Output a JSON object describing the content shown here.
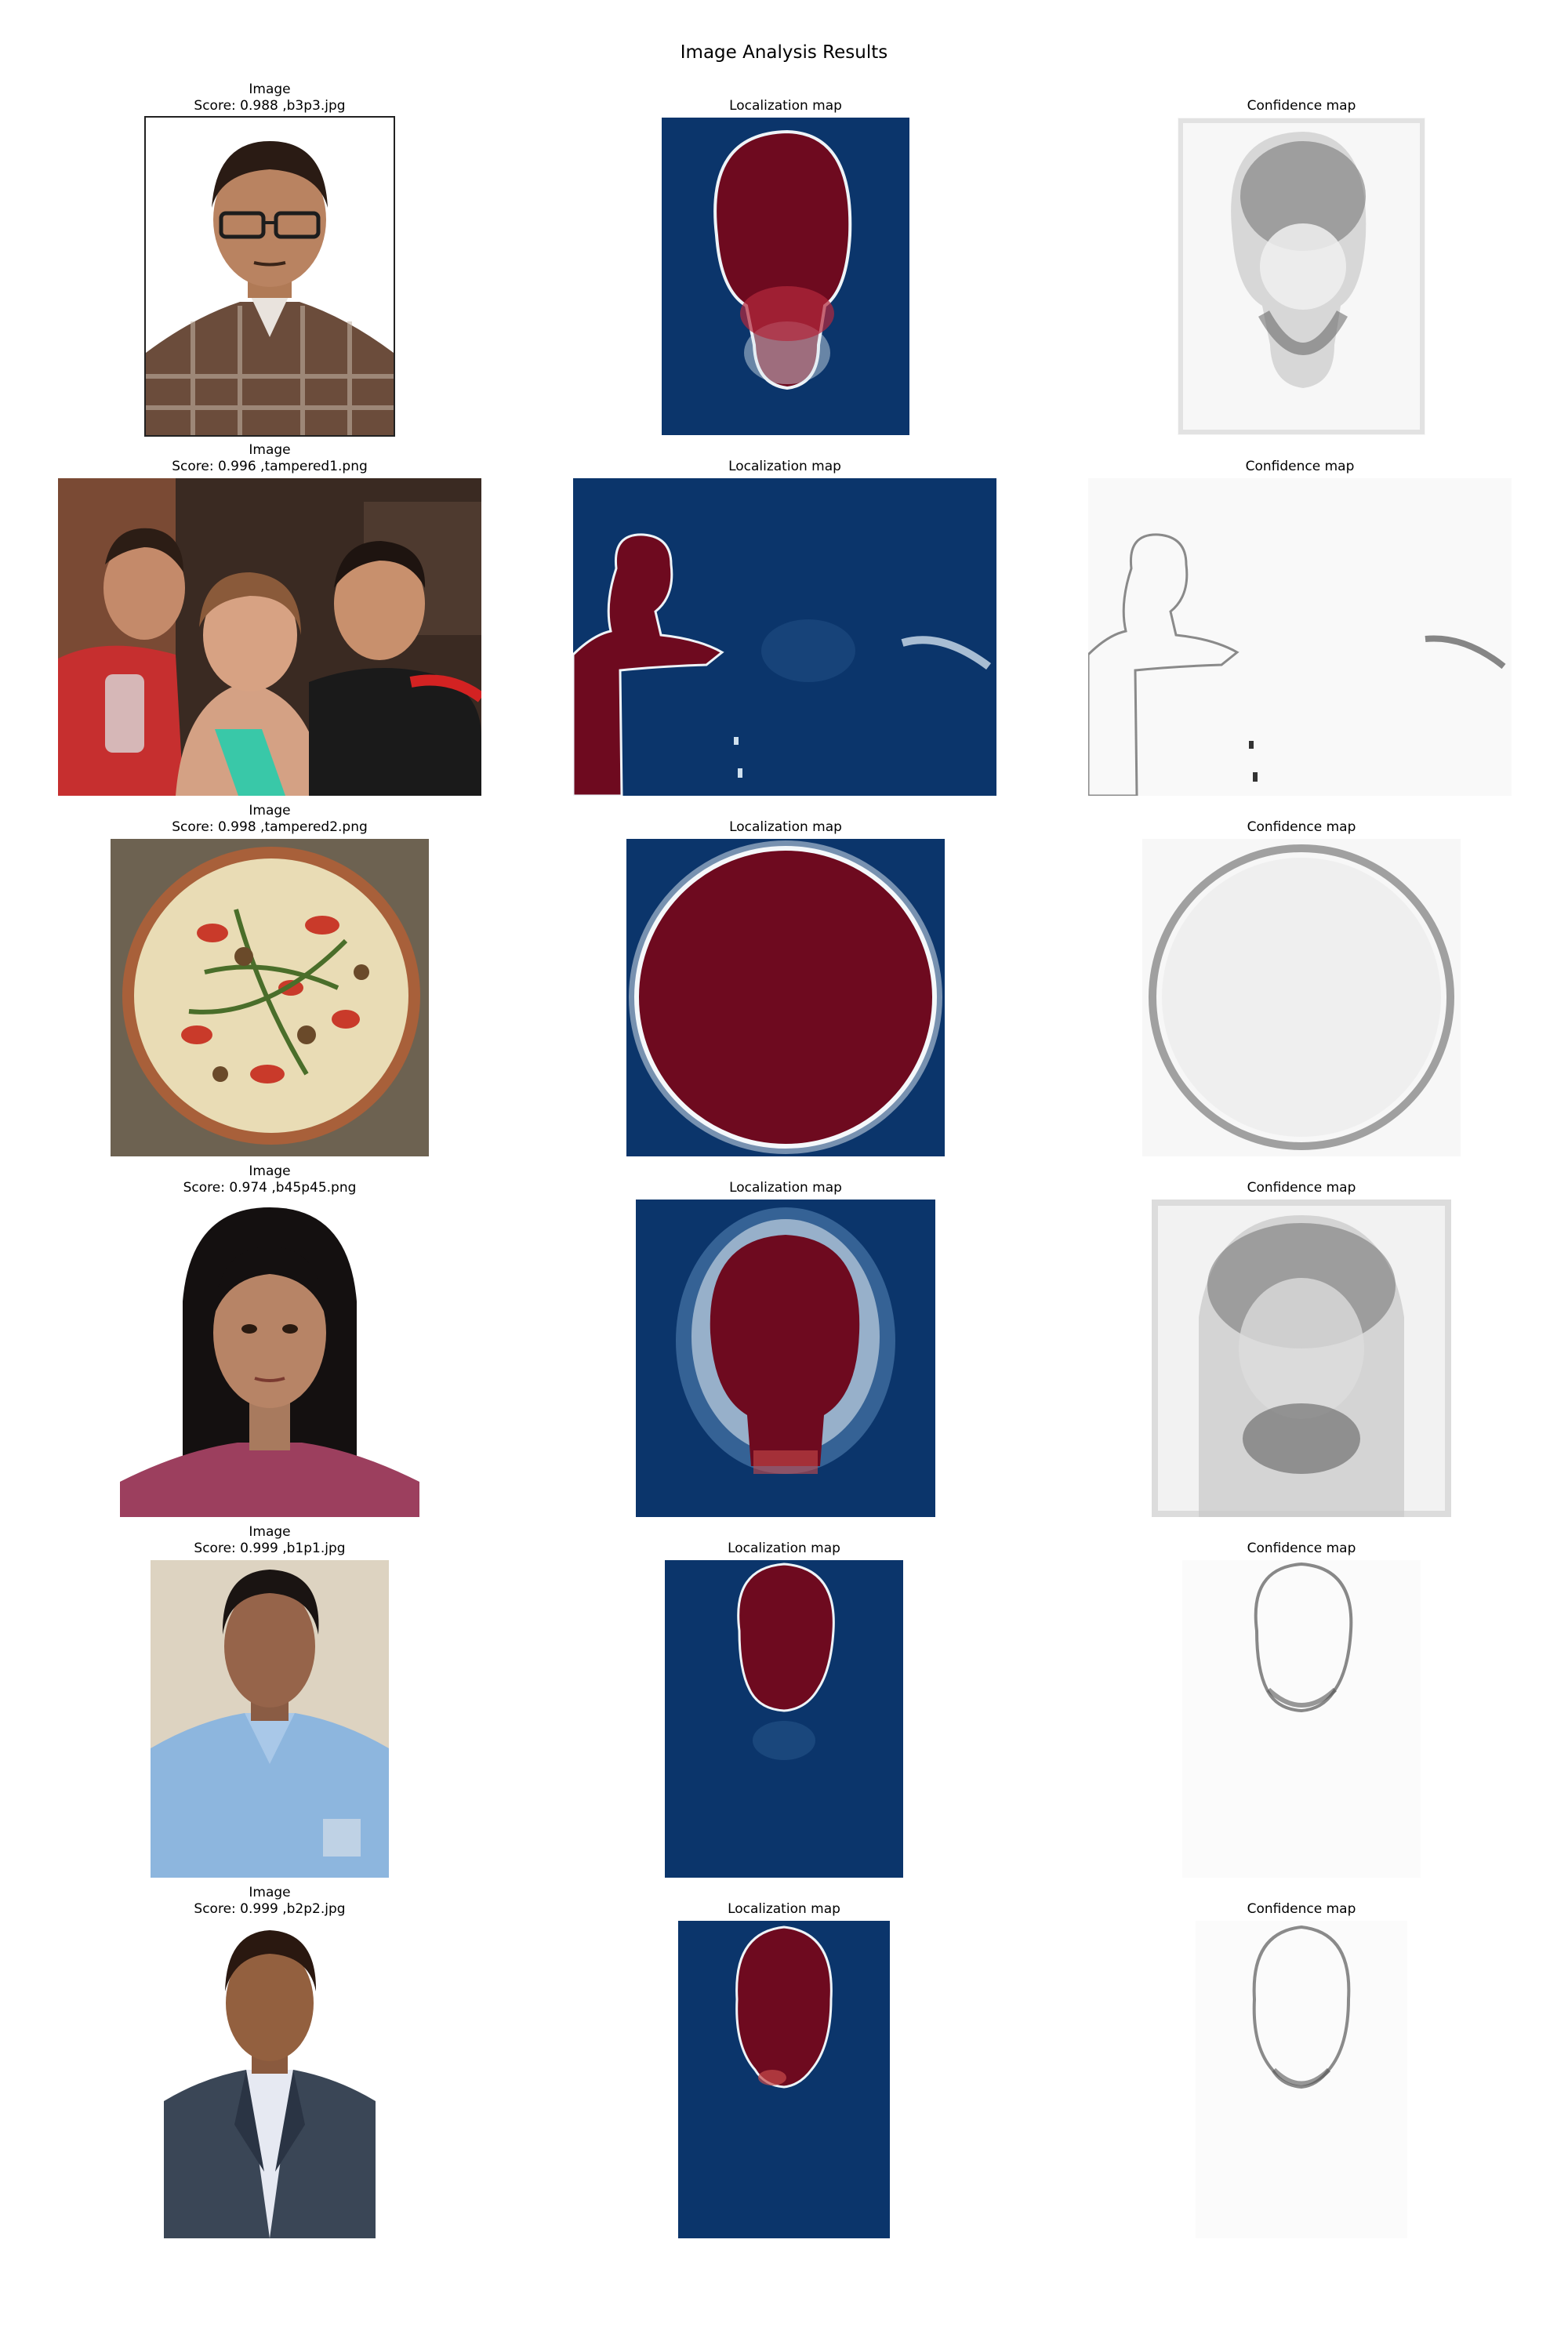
{
  "figure": {
    "title": "Image Analysis Results"
  },
  "colors": {
    "heat_background": "#0b356b",
    "heat_region": "#6e0a1f",
    "heat_edge": "#f4f8fb",
    "confidence_bg": "#f7f7f7",
    "confidence_edge": "#2b2b2b"
  },
  "rows": [
    {
      "image_label": "Image",
      "score_text": "Score: 0.988 ,b3p3.jpg",
      "loc_label": "Localization map",
      "conf_label": "Confidence map",
      "subject": "portrait-glasses"
    },
    {
      "image_label": "Image",
      "score_text": "Score: 0.996 ,tampered1.png",
      "loc_label": "Localization map",
      "conf_label": "Confidence map",
      "subject": "group-selfie"
    },
    {
      "image_label": "Image",
      "score_text": "Score: 0.998 ,tampered2.png",
      "loc_label": "Localization map",
      "conf_label": "Confidence map",
      "subject": "pizza"
    },
    {
      "image_label": "Image",
      "score_text": "Score: 0.974 ,b45p45.png",
      "loc_label": "Localization map",
      "conf_label": "Confidence map",
      "subject": "portrait-long-hair"
    },
    {
      "image_label": "Image",
      "score_text": "Score: 0.999 ,b1p1.jpg",
      "loc_label": "Localization map",
      "conf_label": "Confidence map",
      "subject": "portrait-blue-shirt"
    },
    {
      "image_label": "Image",
      "score_text": "Score: 0.999 ,b2p2.jpg",
      "loc_label": "Localization map",
      "conf_label": "Confidence map",
      "subject": "portrait-suit"
    }
  ]
}
